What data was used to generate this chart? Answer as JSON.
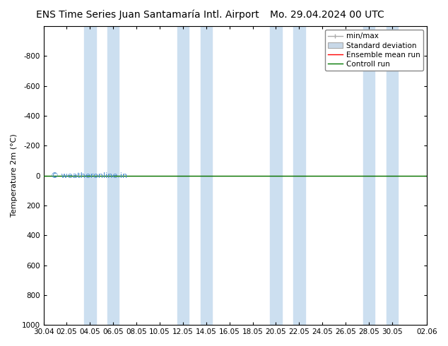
{
  "title_left": "ENS Time Series Juan Santamaría Intl. Airport",
  "title_right": "Mo. 29.04.2024 00 UTC",
  "ylabel": "Temperature 2m (°C)",
  "ylim_bottom": -1000,
  "ylim_top": 1000,
  "yticks": [
    -800,
    -600,
    -400,
    -200,
    0,
    200,
    400,
    600,
    800,
    1000
  ],
  "xlim_start": 0,
  "xlim_end": 33,
  "xtick_labels": [
    "30.04",
    "02.05",
    "04.05",
    "06.05",
    "08.05",
    "10.05",
    "12.05",
    "14.05",
    "16.05",
    "18.05",
    "20.05",
    "22.05",
    "24.05",
    "26.05",
    "28.05",
    "30.05",
    "02.06"
  ],
  "xtick_positions": [
    0,
    2,
    4,
    6,
    8,
    10,
    12,
    14,
    16,
    18,
    20,
    22,
    24,
    26,
    28,
    30,
    33
  ],
  "band_color": "#ccdff0",
  "band_pairs": [
    [
      3.5,
      4.5
    ],
    [
      5.5,
      6.5
    ],
    [
      11.5,
      12.5
    ],
    [
      13.5,
      14.5
    ],
    [
      19.5,
      20.5
    ],
    [
      21.5,
      22.5
    ],
    [
      27.5,
      28.5
    ],
    [
      29.5,
      30.5
    ]
  ],
  "background_color": "#ffffff",
  "axes_background": "#ffffff",
  "watermark": "© weatheronline.in",
  "watermark_color": "#4488cc",
  "watermark_fontsize": 8,
  "ensemble_mean_color": "#ff0000",
  "control_run_color": "#007700",
  "minmax_color": "#aaaaaa",
  "std_dev_color": "#c8d8e8",
  "line_y_value": 0,
  "title_fontsize": 10,
  "tick_fontsize": 7.5,
  "ylabel_fontsize": 8,
  "legend_fontsize": 7.5
}
